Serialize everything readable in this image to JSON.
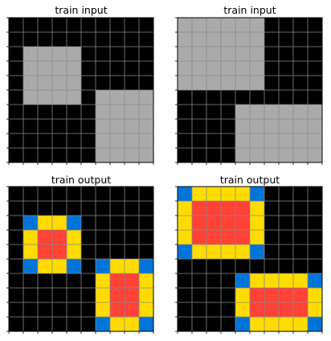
{
  "colors": {
    "0": "#000000",
    "1": "#0074D9",
    "4": "#FFDC00",
    "5": "#AAAAAA",
    "8": "#FF4136"
  },
  "panels": [
    {
      "title": "train input",
      "grid": [
        [
          0,
          0,
          0,
          0,
          0,
          0,
          0,
          0,
          0,
          0
        ],
        [
          0,
          0,
          0,
          0,
          0,
          0,
          0,
          0,
          0,
          0
        ],
        [
          0,
          5,
          5,
          5,
          5,
          0,
          0,
          0,
          0,
          0
        ],
        [
          0,
          5,
          5,
          5,
          5,
          0,
          0,
          0,
          0,
          0
        ],
        [
          0,
          5,
          5,
          5,
          5,
          0,
          0,
          0,
          0,
          0
        ],
        [
          0,
          5,
          5,
          5,
          5,
          0,
          5,
          5,
          5,
          5
        ],
        [
          0,
          0,
          0,
          0,
          0,
          0,
          5,
          5,
          5,
          5
        ],
        [
          0,
          0,
          0,
          0,
          0,
          0,
          5,
          5,
          5,
          5
        ],
        [
          0,
          0,
          0,
          0,
          0,
          0,
          5,
          5,
          5,
          5
        ],
        [
          0,
          0,
          0,
          0,
          0,
          0,
          5,
          5,
          5,
          5
        ]
      ]
    },
    {
      "title": "train input",
      "grid": [
        [
          5,
          5,
          5,
          5,
          5,
          5,
          0,
          0,
          0,
          0
        ],
        [
          5,
          5,
          5,
          5,
          5,
          5,
          0,
          0,
          0,
          0
        ],
        [
          5,
          5,
          5,
          5,
          5,
          5,
          0,
          0,
          0,
          0
        ],
        [
          5,
          5,
          5,
          5,
          5,
          5,
          0,
          0,
          0,
          0
        ],
        [
          5,
          5,
          5,
          5,
          5,
          5,
          0,
          0,
          0,
          0
        ],
        [
          0,
          0,
          0,
          0,
          0,
          0,
          0,
          0,
          0,
          0
        ],
        [
          0,
          0,
          0,
          0,
          5,
          5,
          5,
          5,
          5,
          5
        ],
        [
          0,
          0,
          0,
          0,
          5,
          5,
          5,
          5,
          5,
          5
        ],
        [
          0,
          0,
          0,
          0,
          5,
          5,
          5,
          5,
          5,
          5
        ],
        [
          0,
          0,
          0,
          0,
          5,
          5,
          5,
          5,
          5,
          5
        ]
      ]
    },
    {
      "title": "train output",
      "grid": [
        [
          0,
          0,
          0,
          0,
          0,
          0,
          0,
          0,
          0,
          0
        ],
        [
          0,
          0,
          0,
          0,
          0,
          0,
          0,
          0,
          0,
          0
        ],
        [
          0,
          1,
          4,
          4,
          1,
          0,
          0,
          0,
          0,
          0
        ],
        [
          0,
          4,
          8,
          8,
          4,
          0,
          0,
          0,
          0,
          0
        ],
        [
          0,
          4,
          8,
          8,
          4,
          0,
          0,
          0,
          0,
          0
        ],
        [
          0,
          1,
          4,
          4,
          1,
          0,
          1,
          4,
          4,
          1
        ],
        [
          0,
          0,
          0,
          0,
          0,
          0,
          4,
          8,
          8,
          4
        ],
        [
          0,
          0,
          0,
          0,
          0,
          0,
          4,
          8,
          8,
          4
        ],
        [
          0,
          0,
          0,
          0,
          0,
          0,
          4,
          8,
          8,
          4
        ],
        [
          0,
          0,
          0,
          0,
          0,
          0,
          1,
          4,
          4,
          1
        ]
      ]
    },
    {
      "title": "train output",
      "grid": [
        [
          1,
          4,
          4,
          4,
          4,
          1,
          0,
          0,
          0,
          0
        ],
        [
          4,
          8,
          8,
          8,
          8,
          4,
          0,
          0,
          0,
          0
        ],
        [
          4,
          8,
          8,
          8,
          8,
          4,
          0,
          0,
          0,
          0
        ],
        [
          4,
          8,
          8,
          8,
          8,
          4,
          0,
          0,
          0,
          0
        ],
        [
          1,
          4,
          4,
          4,
          4,
          1,
          0,
          0,
          0,
          0
        ],
        [
          0,
          0,
          0,
          0,
          0,
          0,
          0,
          0,
          0,
          0
        ],
        [
          0,
          0,
          0,
          0,
          1,
          4,
          4,
          4,
          4,
          1
        ],
        [
          0,
          0,
          0,
          0,
          4,
          8,
          8,
          8,
          8,
          4
        ],
        [
          0,
          0,
          0,
          0,
          4,
          8,
          8,
          8,
          8,
          4
        ],
        [
          0,
          0,
          0,
          0,
          1,
          4,
          4,
          4,
          4,
          1
        ]
      ]
    }
  ]
}
